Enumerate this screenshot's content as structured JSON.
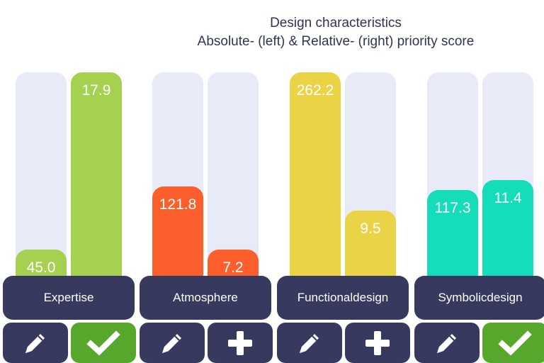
{
  "chart_data": {
    "type": "bar",
    "title": "Design characteristics",
    "subtitle": "Absolute- (left) & Relative- (right) priority score",
    "ylim": [
      0,
      1
    ],
    "categories": [
      "Expertise",
      "Atmosphere",
      "Functional design",
      "Symbolic design"
    ],
    "label_lines": [
      [
        "Expertise"
      ],
      [
        "Atmosphere"
      ],
      [
        "Functional",
        "design"
      ],
      [
        "Symbolic",
        "design"
      ]
    ],
    "absolute": {
      "values": [
        45.0,
        121.8,
        262.2,
        117.3
      ],
      "labels": [
        "45.0",
        "121.8",
        "262.2",
        "117.3"
      ],
      "fill_fraction": [
        0.13,
        0.44,
        1.0,
        0.42
      ]
    },
    "relative": {
      "values": [
        17.9,
        7.2,
        9.5,
        11.4
      ],
      "labels": [
        "17.9",
        "7.2",
        "9.5",
        "11.4"
      ],
      "fill_fraction": [
        1.0,
        0.13,
        0.32,
        0.47
      ]
    },
    "colors": [
      "#a5d050",
      "#fc5f2c",
      "#ead446",
      "#15dcb9"
    ]
  },
  "buttons": [
    {
      "edit_icon": "pencil-icon",
      "action_icon": "check-icon",
      "action_state": "selected"
    },
    {
      "edit_icon": "pencil-icon",
      "action_icon": "plus-icon",
      "action_state": "add"
    },
    {
      "edit_icon": "pencil-icon",
      "action_icon": "plus-icon",
      "action_state": "add"
    },
    {
      "edit_icon": "pencil-icon",
      "action_icon": "check-icon",
      "action_state": "selected"
    }
  ],
  "colors": {
    "track": "#e8eaf8",
    "label_bg": "#373a5e",
    "selected_bg": "#56a72b",
    "text": "#2f3552"
  }
}
